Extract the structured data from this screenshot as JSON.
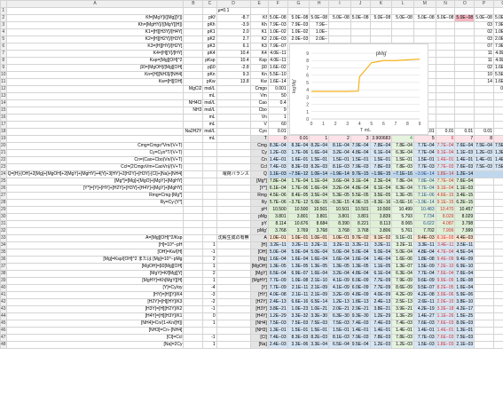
{
  "colors": {
    "pink": "#fde2e8",
    "blue": "#d6e6f6",
    "green": "#dff0d6",
    "orange": "#fbe4cf",
    "gray": "#e4e4e4",
    "purple": "#7b55a5",
    "dark": "#3a3a3a",
    "navyText": "#244d8c",
    "redText": "#d32f2f",
    "greenText": "#2f8a38",
    "lightblueHead": "#bdd7ee",
    "curve": "#f5b21a",
    "redBox": "#f7b6c2"
  },
  "columns": [
    "A",
    "B",
    "C",
    "D",
    "E",
    "F",
    "G",
    "H",
    "I",
    "J",
    "K",
    "L",
    "M",
    "N",
    "O",
    "P",
    "Q",
    "R",
    "S",
    "T",
    "U",
    "V",
    "W",
    "X",
    "Y",
    "Z"
  ],
  "header_bar": {
    "mu": "μ=0.1"
  },
  "rows": [
    {
      "n": "2",
      "A": "Kf=[MgY]/([Mg][Y])",
      "C": "pKf",
      "D": "-8.7",
      "E": "Kf",
      "F": "5.0E−08",
      "G": "5.0E−08",
      "H": "5.0E−08",
      "I": "5.0E−08",
      "J": "5.0E−08",
      "K": "5.0E−08",
      "L": "5.0E−08",
      "M": "5.0E−08",
      "N": "5.0E−08",
      "O": "5.0E−08",
      "P": "5.0E−08",
      "Q": "5.0E−08"
    },
    {
      "n": "3",
      "A": "Kh=[MgHY]/([MgY][H])",
      "C": "pKh",
      "D": "-3.9",
      "E": "Kh",
      "F": "7.9E−03",
      "G": "7.9E−03",
      "H": "7.9E−",
      "P": "03",
      "Q": "7.9E−03"
    },
    {
      "n": "4",
      "A": "K1=[H][H3Y]/[H4Y]",
      "C": "pK1",
      "D": "2.0",
      "E": "K1",
      "F": "1.0E−02",
      "G": "1.0E−02",
      "H": "1.0E−",
      "P": "02",
      "Q": "1.0E−02"
    },
    {
      "n": "5",
      "A": "K2=[H][H2Y]/[H3Y]",
      "C": "pK2",
      "D": "2.7",
      "E": "K2",
      "F": "2.0E−03",
      "G": "2.0E−03",
      "H": "2.0E−",
      "P": "03",
      "Q": "2.0E−03"
    },
    {
      "n": "6",
      "A": "K3=[H][HY]/[H2Y]",
      "C": "pK3",
      "D": "6.1",
      "E": "K3",
      "F": "7.9E−07",
      "G": "7.9E−07",
      "H": "7.9E−",
      "P": "07",
      "Q": "7.9E−07"
    },
    {
      "n": "7",
      "A": "K4=[H][Y]/[HY]",
      "C": "pK4",
      "D": "10.4",
      "E": "K4",
      "F": "4.0E−11",
      "G": "4.0E−11",
      "H": "4.0E−",
      "P": "11",
      "Q": "4.0E−11"
    },
    {
      "n": "8",
      "A": "Ksp=[Mg][OH]^2",
      "C": "pKsp",
      "D": "10.4",
      "E": "Ksp",
      "F": "4.0E−11",
      "G": "4.0E−11",
      "H": "4.0E−",
      "P": "11",
      "Q": "4.0E−11"
    },
    {
      "n": "9",
      "A": "β0=[MgOH]/[Mg][OH]",
      "C": "pβ0",
      "D": "-2.8",
      "E": "β0",
      "F": "1.6E−02",
      "G": "1.6E−02",
      "H": "1.6E−",
      "P": "02",
      "Q": "1.6E−02"
    },
    {
      "n": "10",
      "A": "Kn=[H][NH3]/[NH4]",
      "C": "pKn",
      "D": "9.3",
      "E": "Kn",
      "F": "5.5E−10",
      "G": "5.5E−10",
      "H": "5.5E−",
      "P": "10",
      "Q": "5.5E−10"
    },
    {
      "n": "11",
      "A": "Kw=[H][OH]",
      "C": "pKw",
      "D": "13.8",
      "E": "Kw",
      "F": "1.6E−14",
      "G": "1.6E−14",
      "H": "1.6E−",
      "P": "14",
      "Q": "1.6E−14"
    },
    {
      "n": "12",
      "B": "MgCl2",
      "C": "mol/L",
      "E": "Cmgo",
      "F": "0.001",
      "G": "0.001",
      "H": "0.001",
      "P": "",
      "Q": "0.001"
    },
    {
      "n": "13",
      "C": "mL",
      "E": "Vm",
      "F": "50",
      "G": "50",
      "H": "50",
      "P": "",
      "Q": "50"
    },
    {
      "n": "14",
      "B": "NH4Cl",
      "C": "mol/L",
      "E": "Cao",
      "F": "0.4",
      "G": "0.4",
      "H": "0.4",
      "P": "",
      "Q": "0.4"
    },
    {
      "n": "15",
      "B": "NH3",
      "C": "mol/L",
      "E": "Cbo",
      "F": "9",
      "G": "9",
      "H": "9",
      "P": "",
      "Q": "9"
    },
    {
      "n": "16",
      "C": "mL",
      "E": "Vn",
      "F": "1",
      "G": "1",
      "H": "1",
      "P": "",
      "Q": "1"
    },
    {
      "n": "17",
      "C": "mL",
      "E": "V",
      "F": "60",
      "G": "60",
      "H": "60",
      "P": "",
      "Q": "60"
    },
    {
      "n": "18",
      "B": "Na2H2Y",
      "C": "mol/L",
      "E": "Cyo",
      "F": "0.01",
      "G": "0.01",
      "H": "0.01",
      "I": "0.01",
      "J": "0.01",
      "K": "0.01",
      "L": "0.01",
      "M": "0.01",
      "N": "0.01",
      "O": "0.01",
      "P": "0.01",
      "Q": "0.01"
    },
    {
      "n": "19",
      "C": "mL",
      "E": "T",
      "F": "0",
      "G": "0.01",
      "H": "1",
      "I": "2",
      "J": "3",
      "K": "3.900683",
      "L": "4",
      "M": "5",
      "N": "6",
      "O": "7",
      "P": "8",
      "Q": "9"
    },
    {
      "n": "20",
      "A": "Cmg=Cmgo*Vm/(V+T)",
      "E": "Cmg",
      "F": "8.3E−04",
      "G": "8.3E−04",
      "H": "8.2E−04",
      "I": "8.1E−04",
      "J": "7.9E−04",
      "K": "7.8E−04",
      "L": "7.8E−04",
      "M": "7.7E−04",
      "N": "7.7E−04",
      "O": "7.6E−04",
      "P": "7.5E−04",
      "Q": "7.5E−04"
    },
    {
      "n": "21",
      "A": "Cy=Cyo*T/(V+T)",
      "E": "Cy",
      "F": "1.2E−03",
      "G": "1.7E−06",
      "H": "1.6E−04",
      "I": "3.2E−04",
      "J": "4.8E−04",
      "K": "6.1E−04",
      "L": "6.3E−04",
      "M": "7.7E−04",
      "N": "9.1E−04",
      "O": "1.1E−03",
      "P": "1.2E−03",
      "Q": "1.3E−03"
    },
    {
      "n": "22",
      "A": "Cn=(Cao+Cbo)Vn/(V+T)",
      "E": "Cn",
      "F": "1.4E−01",
      "G": "1.6E−01",
      "H": "1.5E−01",
      "I": "1.5E−01",
      "J": "1.5E−01",
      "K": "1.5E−01",
      "L": "1.5E−01",
      "M": "1.5E−01",
      "N": "1.4E−01",
      "O": "1.4E−01",
      "P": "1.4E−01",
      "Q": "1.4E−01"
    },
    {
      "n": "23",
      "A": "Ccl=(2CmgoVm+CaoVn)/(V+T)",
      "E": "Ccl",
      "F": "7.4E−03",
      "G": "8.3E−03",
      "H": "8.2E−03",
      "I": "8.1E−03",
      "J": "7.9E−03",
      "K": "7.8E−03",
      "L": "7.8E−03",
      "M": "7.7E−03",
      "N": "7.7E−03",
      "O": "7.6E−03",
      "P": "7.5E−03",
      "Q": "7.5E−03"
    },
    {
      "n": "24",
      "A": "Q=[H]-[OH]+2[Mg]+[MgOH]+2[MgY]+[MgHY]+4[Y]+3[HY]+2[H2Y]+[H3Y]-[Cl]+[Na]+[NH4]",
      "D": "電荷バランス",
      "E": "Q",
      "F": "1.1E−03",
      "G": "−7.5E−12",
      "H": "1.0E−14",
      "I": "−1.9E−14",
      "J": "9.7E−15",
      "K": "−1.9E−15",
      "L": "−7.1E−16",
      "M": "−3.9E−14",
      "N": "1.8E−14",
      "O": "1.2E−14"
    },
    {
      "n": "25",
      "A": "[Mg*]=[Mg]+[MgO]+[MgY]+[MgHY]",
      "E": "[Mg*]",
      "F": "7.8E−04",
      "G": "1.7E−04",
      "H": "1.1E−04",
      "I": "3.6E−04",
      "J": "3.1E−04",
      "K": "2.3E−04",
      "L": "7.8E−04",
      "M": "7.8E−04",
      "N": "7.7E−04",
      "O": "7.6E−04"
    },
    {
      "n": "26",
      "A": "[Y*]=[Y]+[HY]+[H2Y]+[H3Y]+[H4Y]+[MgY]+[MgHY]",
      "E": "[Y*]",
      "F": "6.1E−04",
      "G": "1.7E−06",
      "H": "1.6E−04",
      "I": "3.2E−04",
      "J": "4.8E−04",
      "K": "6.1E−04",
      "L": "6.3E−04",
      "M": "7.7E−04",
      "N": "9.1E−04",
      "O": "1.1E−03"
    },
    {
      "n": "27",
      "A": "Rmg=Cmg-[Mg*]",
      "E": "Rmg",
      "F": "4.5E−06",
      "G": "8.4E−05",
      "H": "3.5E−04",
      "I": "5.3E−05",
      "J": "5.5E−05",
      "K": "3.5E−05",
      "L": "1.3E−05",
      "M": "7.1E−06",
      "N": "4.6E−15",
      "O": "3.4E−15"
    },
    {
      "n": "28",
      "A": "Ry=Cy-[Y*]",
      "E": "Ry",
      "F": "5.7E−06",
      "G": "−3.7E−12",
      "H": "5.0E−15",
      "I": "−9.3E−15",
      "J": "4.9E−15",
      "K": "−9.3E−16",
      "L": "−3.6E−16",
      "M": "−1.9E−14",
      "N": "9.1E−15",
      "O": "6.2E−15"
    },
    {
      "n": "29",
      "E": "pH",
      "F": "10.500",
      "G": "10.500",
      "H": "10.501",
      "I": "10.501",
      "J": "10.501",
      "K": "10.500",
      "L": "10.499",
      "M": "10.483",
      "N": "10.470",
      "O": "10.457"
    },
    {
      "n": "30",
      "E": "pMg",
      "F": "3.801",
      "G": "3.801",
      "H": "3.801",
      "I": "3.801",
      "J": "3.801",
      "K": "3.839",
      "L": "5.793",
      "M": "7.734",
      "N": "8.029",
      "O": "8.029"
    },
    {
      "n": "31",
      "E": "pY",
      "F": "8.114",
      "G": "10.676",
      "H": "8.684",
      "I": "8.390",
      "J": "8.221",
      "K": "8.113",
      "L": "8.065",
      "M": "6.022",
      "N": "4.087",
      "O": "3.798"
    },
    {
      "n": "32",
      "E": "pMg'",
      "F": "3.768",
      "G": "3.769",
      "H": "3.768",
      "I": "3.768",
      "J": "3.768",
      "K": "3.806",
      "L": "5.761",
      "M": "7.702",
      "N": "7.999",
      "O": "7.999"
    },
    {
      "n": "33",
      "A": "A=[Mg][OH]^2/Ksp",
      "D": "沈殿生成の有無",
      "E": "A",
      "F": "1.0E−01",
      "G": "1.0E−01",
      "H": "1.0E−01",
      "I": "1.0E−01",
      "J": "9.7E−02",
      "K": "9.1E−02",
      "L": "9.1E−01",
      "M": "9.4E−03",
      "N": "6.1E−03",
      "O": "4.4E−03"
    },
    {
      "n": "34",
      "A": "[H]=10^−pH",
      "C": "1",
      "E": "[H]",
      "F": "3.2E−11",
      "G": "3.2E−11",
      "H": "3.2E−11",
      "I": "3.2E−11",
      "J": "3.2E−11",
      "K": "3.2E−11",
      "L": "3.2E−11",
      "M": "3.3E−11",
      "N": "3.4E−11",
      "O": "3.5E−11"
    },
    {
      "n": "35",
      "A": "[OH]=Kw/[H]",
      "C": "-1",
      "E": "[OH]",
      "F": "5.0E−04",
      "G": "5.0E−04",
      "H": "5.0E−04",
      "I": "5.0E−04",
      "J": "5.0E−04",
      "K": "5.0E−04",
      "L": "5.0E−04",
      "M": "4.8E−04",
      "N": "4.7E−04",
      "O": "4.5E−04"
    },
    {
      "n": "36",
      "A": "[Mg]=Ksp/[OH]^2 または [Mg]=10^−pMg",
      "C": "2",
      "E": "[Mg]",
      "F": "1.6E−04",
      "G": "1.6E−04",
      "H": "1.6E−04",
      "I": "1.6E−04",
      "J": "1.6E−04",
      "K": "1.4E−04",
      "L": "1.6E−06",
      "M": "1.8E−08",
      "N": "9.4E−09",
      "O": "9.4E−09"
    },
    {
      "n": "37",
      "A": "[MgOH]=β0[Mg][OH]",
      "C": "1",
      "E": "[MgOH]",
      "F": "1.3E−05",
      "G": "1.3E−05",
      "H": "1.3E−05",
      "I": "1.3E−05",
      "J": "1.3E−05",
      "K": "1.1E−05",
      "L": "1.3E−07",
      "M": "1.5E−09",
      "N": "7.2E−10",
      "O": "6.9E−10"
    },
    {
      "n": "38",
      "A": "[MgY]=Kf[Mg][Y]",
      "C": "2",
      "E": "[MgY]",
      "F": "6.5E−04",
      "G": "6.9E−07",
      "H": "1.6E−04",
      "I": "3.2E−04",
      "J": "4.8E−04",
      "K": "6.1E−04",
      "L": "6.3E−04",
      "M": "7.7E−04",
      "N": "7.6E−04",
      "O": "7.6E−04"
    },
    {
      "n": "39",
      "A": "[MgHY]=Kh[MgY][H]",
      "C": "1",
      "E": "[MgHY]",
      "F": "7.7E−09",
      "G": "1.0E−08",
      "H": "2.1E−10",
      "I": "4.1E−09",
      "J": "6.0E−09",
      "K": "7.7E−09",
      "L": "7.9E−09",
      "M": "9.6E−09",
      "N": "9.9E−09",
      "O": "1.0E−08"
    },
    {
      "n": "40",
      "A": "[Y]=Cy/αy",
      "C": "-4",
      "E": "[Y]",
      "F": "7.7E−09",
      "G": "2.1E−11",
      "H": "2.1E−09",
      "I": "4.1E−09",
      "J": "6.0E−09",
      "K": "7.7E−09",
      "L": "8.6E−09",
      "M": "9.5E−07",
      "N": "8.2E−05",
      "O": "1.6E−04"
    },
    {
      "n": "41",
      "A": "[HY]=[H][Y]/K4",
      "C": "-3",
      "E": "[HY]",
      "F": "4.0E−08",
      "G": "2.1E−11",
      "H": "2.1E−09",
      "I": "3.2E−09",
      "J": "4.8E−09",
      "K": "4.0E−09",
      "L": "4.2E−09",
      "M": "4.2E−08",
      "N": "3.9E−06",
      "O": "5.9E−06"
    },
    {
      "n": "42",
      "A": "[H2Y]=[H][HY]/K3",
      "C": "-2",
      "E": "[H2Y]",
      "F": "2.4E−13",
      "G": "6.6E−16",
      "H": "6.5E−14",
      "I": "1.2E−13",
      "J": "1.8E−13",
      "K": "2.4E−13",
      "L": "2.5E−13",
      "M": "2.6E−11",
      "N": "2.0E−10",
      "O": "3.8E−10"
    },
    {
      "n": "43",
      "A": "[H3Y]=[H][H2Y]/K2",
      "C": "-1",
      "E": "[H3Y]",
      "F": "3.8E−21",
      "G": "1.0E−23",
      "H": "1.0E−21",
      "I": "2.0E−21",
      "J": "2.9E−21",
      "K": "3.8E−21",
      "L": "3.9E−21",
      "M": "4.2E−19",
      "N": "3.3E−18",
      "O": "4.2E−17"
    },
    {
      "n": "44",
      "A": "[H4Y]=[H][H3Y]/K1",
      "C": "0",
      "E": "[H4Y]",
      "F": "1.2E−29",
      "G": "3.3E−32",
      "H": "3.3E−30",
      "I": "6.3E−30",
      "J": "9.3E−30",
      "K": "1.2E−29",
      "L": "1.3E−29",
      "M": "1.4E−27",
      "N": "1.1E−26",
      "O": "1.5E−25"
    },
    {
      "n": "45",
      "A": "[NH4]=Cn/(1+Kn/[H])",
      "C": "1",
      "E": "[NH4]",
      "F": "7.5E−03",
      "G": "7.5E−03",
      "H": "7.5E−03",
      "I": "7.5E−03",
      "J": "7.4E−03",
      "K": "7.4E−03",
      "L": "7.4E−03",
      "M": "7.6E−03",
      "N": "7.6E−03",
      "O": "8.0E−03"
    },
    {
      "n": "46",
      "A": "[NH3]=Cn−[NH4]",
      "E": "[NH3]",
      "F": "1.3E−01",
      "G": "1.5E−01",
      "H": "1.5E−01",
      "I": "1.5E−01",
      "J": "1.4E−01",
      "K": "1.4E−01",
      "L": "1.4E−01",
      "M": "1.4E−01",
      "N": "1.4E−01",
      "O": "1.3E−01"
    },
    {
      "n": "47",
      "A": "[Cl]=Ccl",
      "C": "-1",
      "E": "[Cl]",
      "F": "7.4E−03",
      "G": "8.3E−03",
      "H": "8.2E−03",
      "I": "8.1E−03",
      "J": "7.9E−03",
      "K": "7.8E−03",
      "L": "7.8E−03",
      "M": "7.7E−03",
      "N": "7.6E−03",
      "O": "7.5E−03"
    },
    {
      "n": "48",
      "A": "[Na]=2Cy",
      "C": "1",
      "E": "[Na]",
      "F": "2.4E−03",
      "G": "3.3E−06",
      "H": "3.3E−04",
      "I": "6.5E−04",
      "J": "9.5E−04",
      "K": "1.2E−03",
      "L": "1.2E−03",
      "M": "1.5E−03",
      "N": "1.8E−03",
      "O": "2.1E−03"
    }
  ],
  "chart_data": {
    "type": "line",
    "title": "pMg'",
    "xlabel": "T mL",
    "ylabel": "logMg'",
    "x_ticks": [
      "0",
      "1",
      "2",
      "3",
      "4",
      "5",
      "6",
      "7",
      "8",
      "9"
    ],
    "y_ticks": [
      "0",
      "1",
      "2",
      "3",
      "4",
      "5",
      "6",
      "7",
      "8",
      "9"
    ],
    "xlim": [
      0,
      9
    ],
    "ylim": [
      0,
      9
    ],
    "grid": true,
    "legend": "none",
    "x": [
      0,
      0.01,
      1,
      2,
      3,
      3.900683,
      4,
      5,
      6,
      7,
      8,
      9
    ],
    "series": [
      {
        "values": [
          3.768,
          3.769,
          3.768,
          3.768,
          3.768,
          3.806,
          5.761,
          7.702,
          7.999,
          7.999,
          8.1,
          8.2
        ]
      }
    ]
  }
}
